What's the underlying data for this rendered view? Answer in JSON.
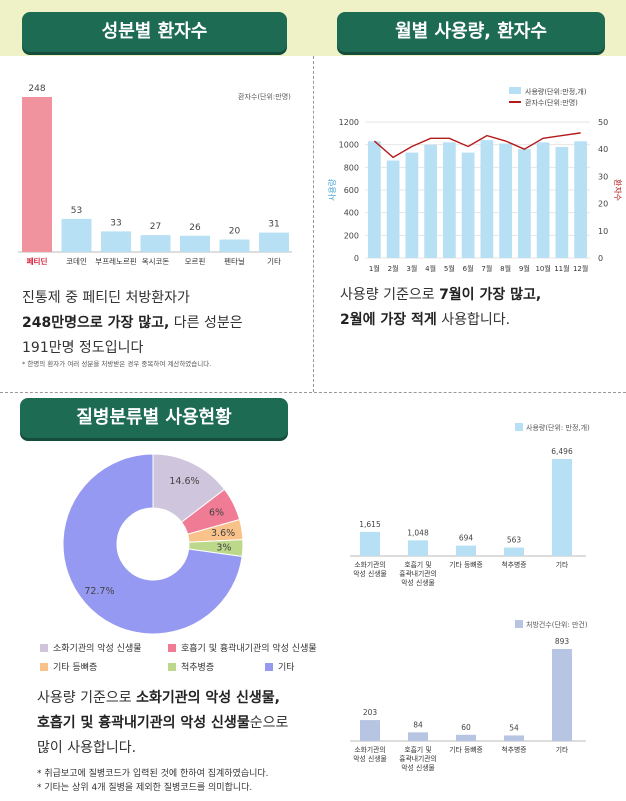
{
  "panels": {
    "ingredient_title": "성분별 환자수",
    "monthly_title": "월별 사용량, 환자수",
    "disease_title": "질병분류별 사용현황"
  },
  "ingredient_text": {
    "line1": "진통제 중 페티딘 처방환자가",
    "line2_bold": "248만명으로 가장 많고,",
    "line2_rest": " 다른 성분은",
    "line3": "191만명 정도입니다",
    "note": "* 한명의 환자가 여러 성분을 처방받은 경우 중복하여 계산하였습니다."
  },
  "monthly_text": {
    "line1_pre": "사용량 기준으로 ",
    "line1_bold": "7월이 가장 많고,",
    "line2_bold": "2월에 가장 적게",
    "line2_rest": " 사용합니다."
  },
  "disease_text": {
    "l1_pre": "사용량 기준으로 ",
    "l1_bold": "소화기관의 악성 신생물,",
    "l2_bold": "호흡기 및 흉곽내기관의 악성 신생물",
    "l2_rest": "순으로",
    "l3": "많이 사용합니다.",
    "note1": "* 취급보고에 질병코드가 입력된 것에 한하여 집계하였습니다.",
    "note2": "* 기타는 상위 4개 질병을 제외한 질병코드를 의미합니다."
  },
  "colors": {
    "header_green": "#1e6b54",
    "band_yellow": "#eef2c6",
    "bar_blue": "#b8e0f5",
    "bar_highlight": "#f0939f",
    "line_red": "#b31b1b",
    "prescription_bar": "#b7c4e2"
  },
  "chart_data": [
    {
      "type": "bar",
      "title": "",
      "unit_label": "환자수(단위:만명)",
      "categories": [
        "페티딘",
        "코데인",
        "부프레노르핀",
        "옥시코돈",
        "모르핀",
        "펜타닐",
        "기타"
      ],
      "values": [
        248,
        53,
        33,
        27,
        26,
        20,
        31
      ],
      "highlight": "페티딘"
    },
    {
      "type": "bar+line",
      "categories": [
        "1월",
        "2월",
        "3월",
        "4월",
        "5월",
        "6월",
        "7월",
        "8월",
        "9월",
        "10월",
        "11월",
        "12월"
      ],
      "series": [
        {
          "name": "사용량(단위:만정,개)",
          "axis": "left",
          "values": [
            1030,
            860,
            930,
            1000,
            1020,
            930,
            1040,
            1010,
            960,
            1020,
            980,
            1030
          ]
        },
        {
          "name": "환자수(단위:만명)",
          "axis": "right",
          "values": [
            43,
            37,
            41,
            44,
            44,
            41,
            45,
            43,
            40,
            44,
            45,
            46
          ]
        }
      ],
      "ylabel": "사용량",
      "y2label": "환자수",
      "ylim": [
        0,
        1200
      ],
      "y2lim": [
        0,
        50
      ],
      "yticks": [
        0,
        200,
        400,
        600,
        800,
        1000,
        1200
      ],
      "y2ticks": [
        0,
        10,
        20,
        30,
        40,
        50
      ]
    },
    {
      "type": "pie",
      "legend_placement": "bottom",
      "slices": [
        {
          "label": "소화기관의 악성 신생물",
          "value": 14.6,
          "color": "#cfc5dc"
        },
        {
          "label": "호흡기 및 흉곽내기관의 악성 신생물",
          "value": 6,
          "color": "#f07b95"
        },
        {
          "label": "기타 등뼈증",
          "value": 3.6,
          "color": "#f9c28a"
        },
        {
          "label": "척추병증",
          "value": 3,
          "color": "#bcd88a"
        },
        {
          "label": "기타",
          "value": 72.7,
          "color": "#9699f2"
        }
      ]
    },
    {
      "type": "bar",
      "legend": "사용량(단위: 만정,개)",
      "categories": [
        "소화기관의\n악성 신생물",
        "호흡기 및\n흉곽내기관의\n악성 신생물",
        "기타 등뼈증",
        "척추병증",
        "기타"
      ],
      "values": [
        1615,
        1048,
        694,
        563,
        6496
      ],
      "value_labels": [
        "1,615",
        "1,048",
        "694",
        "563",
        "6,496"
      ]
    },
    {
      "type": "bar",
      "legend": "처방건수(단위: 만건)",
      "categories": [
        "소화기관의\n악성 신생물",
        "호흡기 및\n흉곽내기관의\n악성 신생물",
        "기타 등뼈증",
        "척추병증",
        "기타"
      ],
      "values": [
        203,
        84,
        60,
        54,
        893
      ],
      "value_labels": [
        "203",
        "84",
        "60",
        "54",
        "893"
      ]
    }
  ]
}
